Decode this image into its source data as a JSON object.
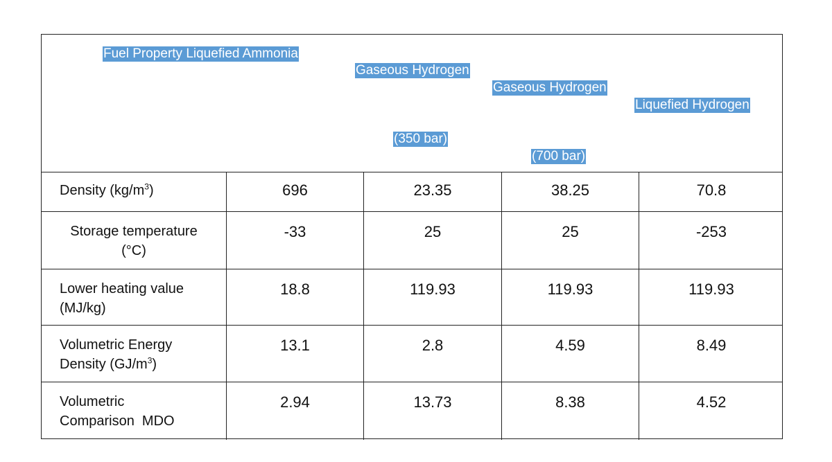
{
  "header": {
    "fuel_property": "Fuel Property",
    "col1": "Liquefied Ammonia",
    "col2_line1": "Gaseous Hydrogen",
    "col2_line2": "(350 bar)",
    "col3_line1": "Gaseous Hydrogen",
    "col3_line2": "(700 bar)",
    "col4": "Liquefied Hydrogen"
  },
  "rows": [
    {
      "label_main": "Density (kg/m",
      "label_sup": "3",
      "label_end": ")",
      "values": [
        "696",
        "23.35",
        "38.25",
        "70.8"
      ]
    },
    {
      "label_line1": "Storage temperature",
      "label_line2": "(°C)",
      "values": [
        "-33",
        "25",
        "25",
        "-253"
      ]
    },
    {
      "label_line1": "Lower heating value",
      "label_line2": "(MJ/kg)",
      "values": [
        "18.8",
        "119.93",
        "119.93",
        "119.93"
      ]
    },
    {
      "label_line1": "Volumetric Energy",
      "label_line2": "Density (GJ/m",
      "label_sup": "3",
      "label_end": ")",
      "values": [
        "13.1",
        "2.8",
        "4.59",
        "8.49"
      ]
    },
    {
      "label_line1": "Volumetric",
      "label_line2": "Comparison  MDO",
      "values": [
        "2.94",
        "13.73",
        "8.38",
        "4.52"
      ]
    }
  ]
}
